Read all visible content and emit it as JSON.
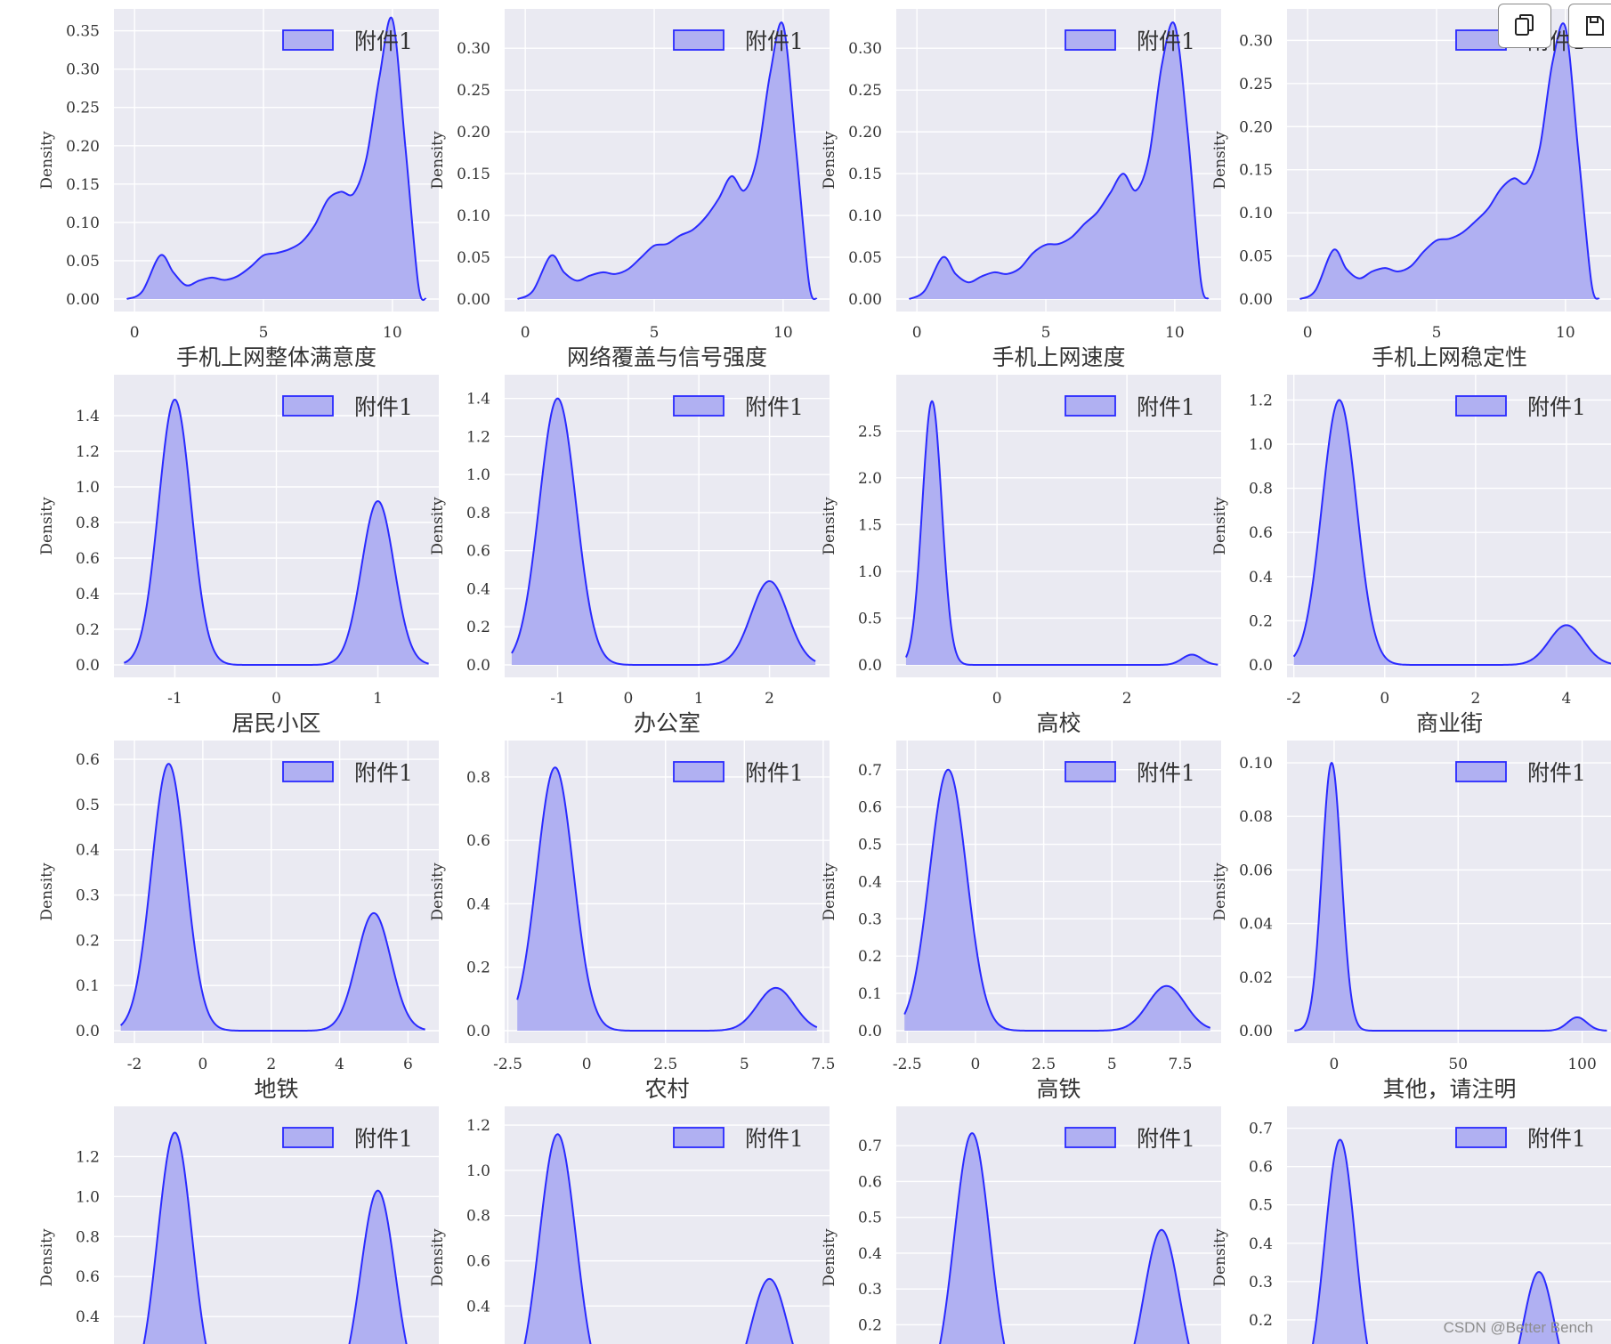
{
  "toolbar": {
    "copy_icon": "copy-icon",
    "save_icon": "save-icon"
  },
  "watermark": "CSDN @Better Bench",
  "colors": {
    "fill": "#b0b0f2",
    "line": "#2a2aff",
    "panel_bg": "#eaeaf2",
    "grid": "#ffffff"
  },
  "chart_data": [
    {
      "type": "area",
      "xlabel": "手机上网整体满意度",
      "ylabel": "Density",
      "legend": "附件1",
      "legend_position": "upper-right",
      "xlim": [
        -0.8,
        11.8
      ],
      "ylim": [
        0,
        0.36
      ],
      "xticks": [
        0,
        5,
        10
      ],
      "yticks": [
        0.0,
        0.05,
        0.1,
        0.15,
        0.2,
        0.25,
        0.3,
        0.35
      ],
      "ytick_labels": [
        "0.00",
        "0.05",
        "0.10",
        "0.15",
        "0.20",
        "0.25",
        "0.30",
        "0.35"
      ],
      "x": [
        -0.3,
        0.3,
        1.0,
        1.5,
        2.0,
        2.5,
        3.0,
        3.5,
        4.0,
        4.5,
        5.0,
        5.5,
        6.0,
        6.5,
        7.0,
        7.5,
        8.0,
        8.5,
        9.0,
        9.5,
        10.0,
        10.5,
        11.0,
        11.3
      ],
      "y": [
        0.0,
        0.01,
        0.057,
        0.035,
        0.018,
        0.024,
        0.028,
        0.025,
        0.03,
        0.042,
        0.057,
        0.06,
        0.065,
        0.075,
        0.097,
        0.13,
        0.14,
        0.138,
        0.185,
        0.29,
        0.365,
        0.2,
        0.02,
        0.0
      ]
    },
    {
      "type": "area",
      "xlabel": "网络覆盖与信号强度",
      "ylabel": "Density",
      "legend": "附件1",
      "legend_position": "upper-right",
      "xlim": [
        -0.8,
        11.8
      ],
      "ylim": [
        0,
        0.33
      ],
      "xticks": [
        0,
        5,
        10
      ],
      "yticks": [
        0.0,
        0.05,
        0.1,
        0.15,
        0.2,
        0.25,
        0.3
      ],
      "ytick_labels": [
        "0.00",
        "0.05",
        "0.10",
        "0.15",
        "0.20",
        "0.25",
        "0.30"
      ],
      "x": [
        -0.3,
        0.3,
        1.0,
        1.5,
        2.0,
        2.5,
        3.0,
        3.5,
        4.0,
        4.5,
        5.0,
        5.5,
        6.0,
        6.5,
        7.0,
        7.5,
        8.0,
        8.5,
        9.0,
        9.5,
        10.0,
        10.5,
        11.0,
        11.3
      ],
      "y": [
        0.0,
        0.01,
        0.052,
        0.032,
        0.022,
        0.028,
        0.032,
        0.03,
        0.036,
        0.05,
        0.064,
        0.066,
        0.076,
        0.083,
        0.098,
        0.12,
        0.147,
        0.13,
        0.17,
        0.27,
        0.328,
        0.18,
        0.02,
        0.0
      ]
    },
    {
      "type": "area",
      "xlabel": "手机上网速度",
      "ylabel": "Density",
      "legend": "附件1",
      "legend_position": "upper-right",
      "xlim": [
        -0.8,
        11.8
      ],
      "ylim": [
        0,
        0.33
      ],
      "xticks": [
        0,
        5,
        10
      ],
      "yticks": [
        0.0,
        0.05,
        0.1,
        0.15,
        0.2,
        0.25,
        0.3
      ],
      "ytick_labels": [
        "0.00",
        "0.05",
        "0.10",
        "0.15",
        "0.20",
        "0.25",
        "0.30"
      ],
      "x": [
        -0.3,
        0.3,
        1.0,
        1.5,
        2.0,
        2.5,
        3.0,
        3.5,
        4.0,
        4.5,
        5.0,
        5.5,
        6.0,
        6.5,
        7.0,
        7.5,
        8.0,
        8.5,
        9.0,
        9.5,
        10.0,
        10.5,
        11.0,
        11.3
      ],
      "y": [
        0.0,
        0.01,
        0.05,
        0.03,
        0.02,
        0.027,
        0.032,
        0.03,
        0.037,
        0.055,
        0.065,
        0.066,
        0.074,
        0.09,
        0.104,
        0.127,
        0.15,
        0.13,
        0.17,
        0.28,
        0.328,
        0.2,
        0.025,
        0.0
      ]
    },
    {
      "type": "area",
      "xlabel": "手机上网稳定性",
      "ylabel": "Density",
      "legend": "附件1",
      "legend_position": "upper-right",
      "xlim": [
        -0.8,
        11.8
      ],
      "ylim": [
        0,
        0.32
      ],
      "xticks": [
        0,
        5,
        10
      ],
      "yticks": [
        0.0,
        0.05,
        0.1,
        0.15,
        0.2,
        0.25,
        0.3
      ],
      "ytick_labels": [
        "0.00",
        "0.05",
        "0.10",
        "0.15",
        "0.20",
        "0.25",
        "0.30"
      ],
      "x": [
        -0.3,
        0.3,
        1.0,
        1.5,
        2.0,
        2.5,
        3.0,
        3.5,
        4.0,
        4.5,
        5.0,
        5.5,
        6.0,
        6.5,
        7.0,
        7.5,
        8.0,
        8.5,
        9.0,
        9.5,
        10.0,
        10.5,
        11.0,
        11.3
      ],
      "y": [
        0.0,
        0.01,
        0.057,
        0.035,
        0.024,
        0.032,
        0.036,
        0.032,
        0.038,
        0.055,
        0.068,
        0.07,
        0.077,
        0.09,
        0.105,
        0.128,
        0.14,
        0.135,
        0.175,
        0.275,
        0.315,
        0.17,
        0.02,
        0.0
      ]
    },
    {
      "type": "area",
      "xlabel": "居民小区",
      "ylabel": "Density",
      "legend": "附件1",
      "legend_position": "upper-right",
      "xlim": [
        -1.6,
        1.6
      ],
      "ylim": [
        0,
        1.55
      ],
      "xticks": [
        -1,
        0,
        1
      ],
      "yticks": [
        0.0,
        0.2,
        0.4,
        0.6,
        0.8,
        1.0,
        1.2,
        1.4
      ],
      "ytick_labels": [
        "0.0",
        "0.2",
        "0.4",
        "0.6",
        "0.8",
        "1.0",
        "1.2",
        "1.4"
      ],
      "peaks": [
        {
          "x": -1,
          "h": 1.49,
          "s": 0.16
        },
        {
          "x": 1,
          "h": 0.92,
          "s": 0.16
        }
      ],
      "range": [
        -1.5,
        1.5
      ]
    },
    {
      "type": "area",
      "xlabel": "办公室",
      "ylabel": "Density",
      "legend": "附件1",
      "legend_position": "upper-right",
      "xlim": [
        -1.75,
        2.85
      ],
      "ylim": [
        0,
        1.45
      ],
      "xticks": [
        -1,
        0,
        1,
        2
      ],
      "yticks": [
        0.0,
        0.2,
        0.4,
        0.6,
        0.8,
        1.0,
        1.2,
        1.4
      ],
      "ytick_labels": [
        "0.0",
        "0.2",
        "0.4",
        "0.6",
        "0.8",
        "1.0",
        "1.2",
        "1.4"
      ],
      "peaks": [
        {
          "x": -1,
          "h": 1.4,
          "s": 0.26
        },
        {
          "x": 2,
          "h": 0.44,
          "s": 0.26
        }
      ],
      "range": [
        -1.65,
        2.65
      ]
    },
    {
      "type": "area",
      "xlabel": "高校",
      "ylabel": "Density",
      "legend": "附件1",
      "legend_position": "upper-right",
      "xlim": [
        -1.55,
        3.45
      ],
      "ylim": [
        0,
        2.95
      ],
      "xticks": [
        0,
        2
      ],
      "yticks": [
        0.0,
        0.5,
        1.0,
        1.5,
        2.0,
        2.5
      ],
      "ytick_labels": [
        "0.0",
        "0.5",
        "1.0",
        "1.5",
        "2.0",
        "2.5"
      ],
      "peaks": [
        {
          "x": -1,
          "h": 2.82,
          "s": 0.15
        },
        {
          "x": 3,
          "h": 0.11,
          "s": 0.15
        }
      ],
      "range": [
        -1.4,
        3.4
      ]
    },
    {
      "type": "area",
      "xlabel": "商业街",
      "ylabel": "Density",
      "legend": "附件1",
      "legend_position": "upper-right",
      "xlim": [
        -2.15,
        5.0
      ],
      "ylim": [
        0,
        1.25
      ],
      "xticks": [
        -2,
        0,
        2,
        4
      ],
      "yticks": [
        0.0,
        0.2,
        0.4,
        0.6,
        0.8,
        1.0,
        1.2
      ],
      "ytick_labels": [
        "0.0",
        "0.2",
        "0.4",
        "0.6",
        "0.8",
        "1.0",
        "1.2"
      ],
      "peaks": [
        {
          "x": -1,
          "h": 1.2,
          "s": 0.38
        },
        {
          "x": 4,
          "h": 0.18,
          "s": 0.38
        }
      ],
      "range": [
        -2.0,
        5.0
      ]
    },
    {
      "type": "area",
      "xlabel": "地铁",
      "ylabel": "Density",
      "legend": "附件1",
      "legend_position": "upper-right",
      "xlim": [
        -2.6,
        6.9
      ],
      "ylim": [
        0,
        0.61
      ],
      "xticks": [
        -2,
        0,
        2,
        4,
        6
      ],
      "yticks": [
        0.0,
        0.1,
        0.2,
        0.3,
        0.4,
        0.5,
        0.6
      ],
      "ytick_labels": [
        "0.0",
        "0.1",
        "0.2",
        "0.3",
        "0.4",
        "0.5",
        "0.6"
      ],
      "peaks": [
        {
          "x": -1,
          "h": 0.59,
          "s": 0.5
        },
        {
          "x": 5,
          "h": 0.26,
          "s": 0.5
        }
      ],
      "range": [
        -2.4,
        6.5
      ]
    },
    {
      "type": "area",
      "xlabel": "农村",
      "ylabel": "Density",
      "legend": "附件1",
      "legend_position": "upper-right",
      "xlim": [
        -2.6,
        7.7
      ],
      "ylim": [
        0,
        0.87
      ],
      "xticks": [
        -2.5,
        0.0,
        2.5,
        5.0,
        7.5
      ],
      "yticks": [
        0.0,
        0.2,
        0.4,
        0.6,
        0.8
      ],
      "ytick_labels": [
        "0.0",
        "0.2",
        "0.4",
        "0.6",
        "0.8"
      ],
      "peaks": [
        {
          "x": -1,
          "h": 0.83,
          "s": 0.58
        },
        {
          "x": 6,
          "h": 0.135,
          "s": 0.58
        }
      ],
      "range": [
        -2.2,
        7.3
      ]
    },
    {
      "type": "area",
      "xlabel": "高铁",
      "ylabel": "Density",
      "legend": "附件1",
      "legend_position": "upper-right",
      "xlim": [
        -2.9,
        9.0
      ],
      "ylim": [
        0,
        0.74
      ],
      "xticks": [
        -2.5,
        0.0,
        2.5,
        5.0,
        7.5
      ],
      "ytick_labels": [
        "0.0",
        "0.1",
        "0.2",
        "0.3",
        "0.4",
        "0.5",
        "0.6",
        "0.7"
      ],
      "yticks": [
        0.0,
        0.1,
        0.2,
        0.3,
        0.4,
        0.5,
        0.6,
        0.7
      ],
      "peaks": [
        {
          "x": -1,
          "h": 0.7,
          "s": 0.68
        },
        {
          "x": 7,
          "h": 0.12,
          "s": 0.68
        }
      ],
      "range": [
        -2.6,
        8.6
      ]
    },
    {
      "type": "area",
      "xlabel": "其他，请注明",
      "ylabel": "Density",
      "legend": "附件1",
      "legend_position": "upper-right",
      "xlim": [
        -19,
        112
      ],
      "ylim": [
        0,
        0.103
      ],
      "xticks": [
        0,
        50,
        100
      ],
      "yticks": [
        0.0,
        0.02,
        0.04,
        0.06,
        0.08,
        0.1
      ],
      "ytick_labels": [
        "0.00",
        "0.02",
        "0.04",
        "0.06",
        "0.08",
        "0.10"
      ],
      "peaks": [
        {
          "x": -1,
          "h": 0.1,
          "s": 3.9
        },
        {
          "x": 98,
          "h": 0.005,
          "s": 3.9
        }
      ],
      "range": [
        -16,
        110
      ]
    },
    {
      "type": "area",
      "xlabel": "",
      "ylabel": "Density",
      "legend": "附件1",
      "legend_position": "upper-right",
      "xlim": [
        -1.6,
        1.6
      ],
      "ylim": [
        0,
        1.38
      ],
      "xticks": [],
      "yticks": [
        0.4,
        0.6,
        0.8,
        1.0,
        1.2
      ],
      "ytick_labels": [
        "0.4",
        "0.6",
        "0.8",
        "1.0",
        "1.2"
      ],
      "peaks": [
        {
          "x": -1,
          "h": 1.32,
          "s": 0.17
        },
        {
          "x": 1,
          "h": 1.03,
          "s": 0.17
        }
      ],
      "range": [
        -1.5,
        1.5
      ]
    },
    {
      "type": "area",
      "xlabel": "",
      "ylabel": "Density",
      "legend": "附件1",
      "legend_position": "upper-right",
      "xlim": [
        -1.75,
        2.85
      ],
      "ylim": [
        0,
        1.22
      ],
      "xticks": [],
      "yticks": [
        0.4,
        0.6,
        0.8,
        1.0,
        1.2
      ],
      "ytick_labels": [
        "0.4",
        "0.6",
        "0.8",
        "1.0",
        "1.2"
      ],
      "peaks": [
        {
          "x": -1,
          "h": 1.16,
          "s": 0.26
        },
        {
          "x": 2,
          "h": 0.52,
          "s": 0.26
        }
      ],
      "range": [
        -1.65,
        2.65
      ]
    },
    {
      "type": "area",
      "xlabel": "",
      "ylabel": "Density",
      "legend": "附件1",
      "legend_position": "upper-right",
      "xlim": [
        -2.0,
        4.0
      ],
      "ylim": [
        0,
        0.77
      ],
      "xticks": [],
      "yticks": [
        0.2,
        0.3,
        0.4,
        0.5,
        0.6,
        0.7
      ],
      "ytick_labels": [
        "0.2",
        "0.3",
        "0.4",
        "0.5",
        "0.6",
        "0.7"
      ],
      "peaks": [
        {
          "x": -0.6,
          "h": 0.735,
          "s": 0.33
        },
        {
          "x": 2.9,
          "h": 0.465,
          "s": 0.33
        }
      ],
      "range": [
        -1.9,
        4.0
      ]
    },
    {
      "type": "area",
      "xlabel": "",
      "ylabel": "Density",
      "legend": "附件1",
      "legend_position": "upper-right",
      "xlim": [
        -1.8,
        3.1
      ],
      "ylim": [
        0,
        0.72
      ],
      "xticks": [],
      "yticks": [
        0.2,
        0.3,
        0.4,
        0.5,
        0.6,
        0.7
      ],
      "ytick_labels": [
        "0.2",
        "0.3",
        "0.4",
        "0.5",
        "0.6",
        "0.7"
      ],
      "peaks": [
        {
          "x": -1,
          "h": 0.67,
          "s": 0.23
        },
        {
          "x": 2,
          "h": 0.325,
          "s": 0.23
        }
      ],
      "range": [
        -1.7,
        3.1
      ]
    }
  ]
}
